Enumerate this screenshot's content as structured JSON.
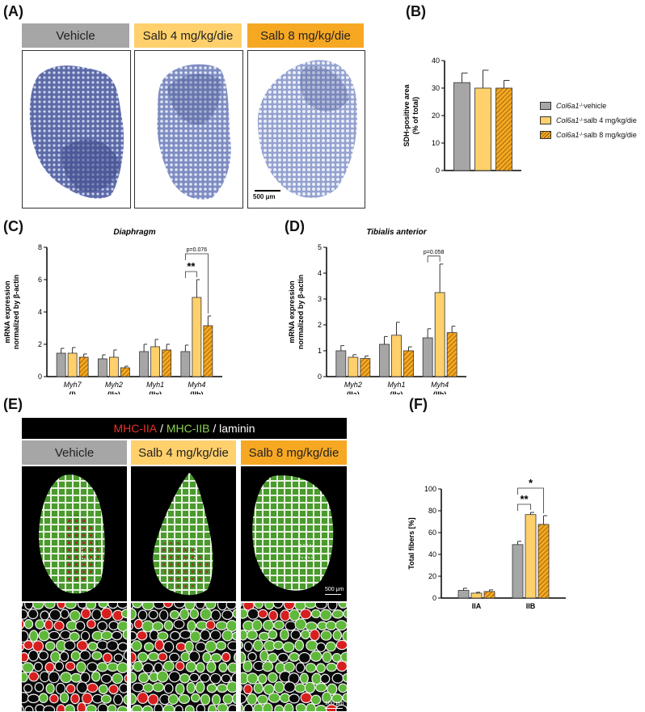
{
  "panels": {
    "A": "(A)",
    "B": "(B)",
    "C": "(C)",
    "D": "(D)",
    "E": "(E)",
    "F": "(F)"
  },
  "conditions": {
    "vehicle": "Vehicle",
    "salb4": "Salb 4 mg/kg/die",
    "salb8": "Salb 8 mg/kg/die"
  },
  "colors": {
    "vehicle": "#a6a6a6",
    "salb4": "#ffd06b",
    "salb8": "#f7a823",
    "salb8_hatch": "#8a5a00",
    "sdh_stain": "#4a5a9c",
    "mhc_iia": "#e8322b",
    "mhc_iib": "#8ed14f",
    "laminin": "#ffffff"
  },
  "scale_a": "500 μm",
  "scale_e": "500 μm",
  "scale_e_zoom": "100 μm",
  "legend": {
    "gene": "Col6a1",
    "sup": "-/-",
    "items": [
      " vehicle",
      " salb 4 mg/kg/die",
      " salb 8 mg/kg/die"
    ]
  },
  "stain_header": {
    "iia": "MHC-IIA",
    "sep1": " / ",
    "iib": "MHC-IIB",
    "sep2": " / ",
    "laminin": "laminin"
  },
  "chart_data": [
    {
      "panel": "B",
      "type": "bar",
      "ylabel": [
        "SDH-positive area",
        "(% of total)"
      ],
      "ylim": [
        0,
        40
      ],
      "yticks": [
        0,
        10,
        20,
        30,
        40
      ],
      "categories": [
        ""
      ],
      "series": [
        {
          "name": "Col6a1-/- vehicle",
          "values": [
            32
          ],
          "errors": [
            3.5
          ]
        },
        {
          "name": "Col6a1-/- salb 4 mg/kg/die",
          "values": [
            30
          ],
          "errors": [
            6.5
          ]
        },
        {
          "name": "Col6a1-/- salb 8 mg/kg/die",
          "values": [
            30
          ],
          "errors": [
            2.8
          ]
        }
      ]
    },
    {
      "panel": "C",
      "type": "bar",
      "title": "Diaphragm",
      "ylabel": [
        "mRNA expression",
        "normalized by β-actin"
      ],
      "ylim": [
        0,
        8
      ],
      "yticks": [
        0,
        2,
        4,
        6,
        8
      ],
      "categories": [
        "Myh7",
        "Myh2",
        "Myh1",
        "Myh4"
      ],
      "category_sub": [
        "(I)",
        "(IIa)",
        "(IIx)",
        "(IIb)"
      ],
      "series": [
        {
          "name": "vehicle",
          "values": [
            1.45,
            1.1,
            1.55,
            1.55
          ],
          "errors": [
            0.3,
            0.25,
            0.45,
            0.4
          ]
        },
        {
          "name": "salb 4",
          "values": [
            1.45,
            1.2,
            1.85,
            4.9
          ],
          "errors": [
            0.35,
            0.45,
            0.45,
            1.1
          ]
        },
        {
          "name": "salb 8",
          "values": [
            1.2,
            0.55,
            1.65,
            3.15
          ],
          "errors": [
            0.2,
            0.1,
            0.35,
            0.6
          ]
        }
      ],
      "annotations": [
        {
          "text": "**",
          "category": 3,
          "from": 0,
          "to": 1
        },
        {
          "text": "p=0.076",
          "category": 3,
          "from": 0,
          "to": 2
        }
      ]
    },
    {
      "panel": "D",
      "type": "bar",
      "title": "Tibialis anterior",
      "ylabel": [
        "mRNA expression",
        "normalized by β-actin"
      ],
      "ylim": [
        0,
        5
      ],
      "yticks": [
        0,
        1,
        2,
        3,
        4,
        5
      ],
      "categories": [
        "Myh2",
        "Myh1",
        "Myh4"
      ],
      "category_sub": [
        "(IIa)",
        "(IIx)",
        "(IIb)"
      ],
      "series": [
        {
          "name": "vehicle",
          "values": [
            1.0,
            1.25,
            1.5
          ],
          "errors": [
            0.2,
            0.3,
            0.35
          ]
        },
        {
          "name": "salb 4",
          "values": [
            0.75,
            1.6,
            3.25
          ],
          "errors": [
            0.1,
            0.5,
            1.1
          ]
        },
        {
          "name": "salb 8",
          "values": [
            0.7,
            1.0,
            1.7
          ],
          "errors": [
            0.1,
            0.15,
            0.25
          ]
        }
      ],
      "annotations": [
        {
          "text": "p=0.058",
          "category": 2,
          "from": 0,
          "to": 1
        }
      ]
    },
    {
      "panel": "F",
      "type": "bar",
      "ylabel": [
        "Total fibers [%]"
      ],
      "ylim": [
        0,
        100
      ],
      "yticks": [
        0,
        20,
        40,
        60,
        80,
        100
      ],
      "categories": [
        "IIA",
        "IIB"
      ],
      "series": [
        {
          "name": "vehicle",
          "values": [
            7,
            49
          ],
          "errors": [
            2,
            3
          ]
        },
        {
          "name": "salb 4",
          "values": [
            4.5,
            76.5
          ],
          "errors": [
            0.8,
            2
          ]
        },
        {
          "name": "salb 8",
          "values": [
            6,
            67.5
          ],
          "errors": [
            1.5,
            8
          ]
        }
      ],
      "annotations": [
        {
          "text": "**",
          "category": 1,
          "from": 0,
          "to": 1
        },
        {
          "text": "*",
          "category": 1,
          "from": 0,
          "to": 2
        }
      ]
    }
  ]
}
